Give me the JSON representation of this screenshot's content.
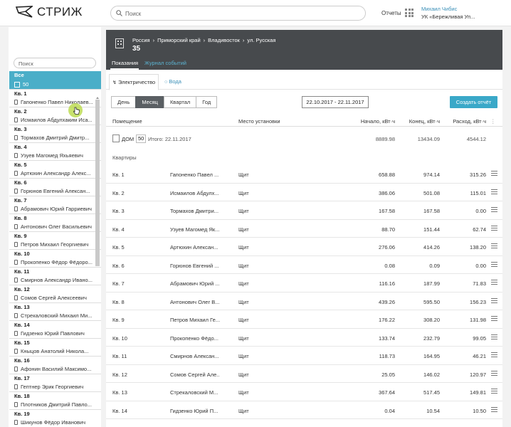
{
  "header": {
    "logo_text": "СТРИЖ",
    "search_placeholder": "Поиск",
    "reports_label": "Отчеты",
    "user_name": "Михаил Чибис",
    "user_org": "УК «Бережливая Уп..."
  },
  "sidebar": {
    "search_placeholder": "Поиск",
    "all": {
      "label": "Все",
      "count": "50"
    },
    "items": [
      {
        "apt": "Кв. 1",
        "name": "Гапоненко Павел Николаев..."
      },
      {
        "apt": "Кв. 2",
        "name": "Исмаилов Абдулхаким Иса..."
      },
      {
        "apt": "Кв. 3",
        "name": "Тормахов Дмитрий Дмитр..."
      },
      {
        "apt": "Кв. 4",
        "name": "Узуев Магомед Яхьяевич"
      },
      {
        "apt": "Кв. 5",
        "name": "Артюхин Александр Алекс..."
      },
      {
        "apt": "Кв. 6",
        "name": "Горюнов Евгений Алексан..."
      },
      {
        "apt": "Кв. 7",
        "name": "Абрамович Юрий Гарриевич"
      },
      {
        "apt": "Кв. 8",
        "name": "Антонович Олег Васильевич"
      },
      {
        "apt": "Кв. 9",
        "name": "Петров Михаил Георгиевич"
      },
      {
        "apt": "Кв. 10",
        "name": "Прокопенко Фёдор Фёдоро..."
      },
      {
        "apt": "Кв. 11",
        "name": "Смирнов Александр Ивано..."
      },
      {
        "apt": "Кв. 12",
        "name": "Сомов Сергей Алексеевич"
      },
      {
        "apt": "Кв. 13",
        "name": "Стрекаловский Михаил Ми..."
      },
      {
        "apt": "Кв. 14",
        "name": "Гидзенко Юрий Павлович"
      },
      {
        "apt": "Кв. 15",
        "name": "Кныцов Анатолий Никола..."
      },
      {
        "apt": "Кв. 16",
        "name": "Афонин Василий Максимо..."
      },
      {
        "apt": "Кв. 17",
        "name": "Гептнер Эрик Георгиевич"
      },
      {
        "apt": "Кв. 18",
        "name": "Плотников Дмитрий Павло..."
      },
      {
        "apt": "Кв. 19",
        "name": "Шикунов Фёдор Иванович"
      }
    ]
  },
  "location": {
    "breadcrumbs": [
      "Россия",
      "Приморский край",
      "Владивосток",
      "ул. Русская"
    ],
    "separator": "›",
    "number": "35"
  },
  "tabs": [
    "Показания",
    "Журнал событий"
  ],
  "resources": {
    "electricity": "Электричество",
    "water": "Вода"
  },
  "periods": {
    "day": "День",
    "month": "Месяц",
    "quarter": "Квартал",
    "year": "Год",
    "active": "Месяц"
  },
  "date_range": "22.10.2017 - 22.11.2017",
  "create_report": "Создать отчёт",
  "table": {
    "headers": {
      "room": "Помещение",
      "place": "Место установки",
      "start": "Начало, кВт·ч",
      "end": "Конец, кВт·ч",
      "usage": "Расход, кВт·ч"
    },
    "house": {
      "label": "ДОМ",
      "count": "50",
      "total_label": "Итого: 22.11.2017",
      "start": "8889.98",
      "end": "13434.09",
      "usage": "4544.12"
    },
    "section": "Квартиры",
    "rows": [
      {
        "apt": "Кв. 1",
        "name": "Гапоненко Павел ...",
        "place": "Щит",
        "start": "658.88",
        "end": "974.14",
        "usage": "315.26"
      },
      {
        "apt": "Кв. 2",
        "name": "Исмаилов Абдулх...",
        "place": "Щит",
        "start": "386.06",
        "end": "501.08",
        "usage": "115.01"
      },
      {
        "apt": "Кв. 3",
        "name": "Тормахов Дмитри...",
        "place": "Щит",
        "start": "167.58",
        "end": "167.58",
        "usage": "0.00"
      },
      {
        "apt": "Кв. 4",
        "name": "Узуев Магомед Як...",
        "place": "Щит",
        "start": "88.70",
        "end": "151.44",
        "usage": "62.74"
      },
      {
        "apt": "Кв. 5",
        "name": "Артюхин Алексан...",
        "place": "Щит",
        "start": "276.06",
        "end": "414.26",
        "usage": "138.20"
      },
      {
        "apt": "Кв. 6",
        "name": "Горюнов Евгений ...",
        "place": "Щит",
        "start": "0.08",
        "end": "0.09",
        "usage": "0.00"
      },
      {
        "apt": "Кв. 7",
        "name": "Абрамович Юрий ...",
        "place": "Щит",
        "start": "116.16",
        "end": "187.99",
        "usage": "71.83"
      },
      {
        "apt": "Кв. 8",
        "name": "Антонович Олег В...",
        "place": "Щит",
        "start": "439.26",
        "end": "595.50",
        "usage": "156.23"
      },
      {
        "apt": "Кв. 9",
        "name": "Петров Михаил Ге...",
        "place": "Щит",
        "start": "176.22",
        "end": "308.20",
        "usage": "131.98"
      },
      {
        "apt": "Кв. 10",
        "name": "Прокопенко Фёдо...",
        "place": "Щит",
        "start": "133.74",
        "end": "232.79",
        "usage": "99.05"
      },
      {
        "apt": "Кв. 11",
        "name": "Смирнов Алексан...",
        "place": "Щит",
        "start": "118.73",
        "end": "164.95",
        "usage": "46.21"
      },
      {
        "apt": "Кв. 12",
        "name": "Сомов Сергей Але...",
        "place": "Щит",
        "start": "25.05",
        "end": "146.02",
        "usage": "120.97"
      },
      {
        "apt": "Кв. 13",
        "name": "Стрекаловский М...",
        "place": "Щит",
        "start": "367.64",
        "end": "517.45",
        "usage": "149.81"
      },
      {
        "apt": "Кв. 14",
        "name": "Гидзенко Юрий П...",
        "place": "Щит",
        "start": "0.04",
        "end": "10.54",
        "usage": "10.50"
      }
    ]
  }
}
